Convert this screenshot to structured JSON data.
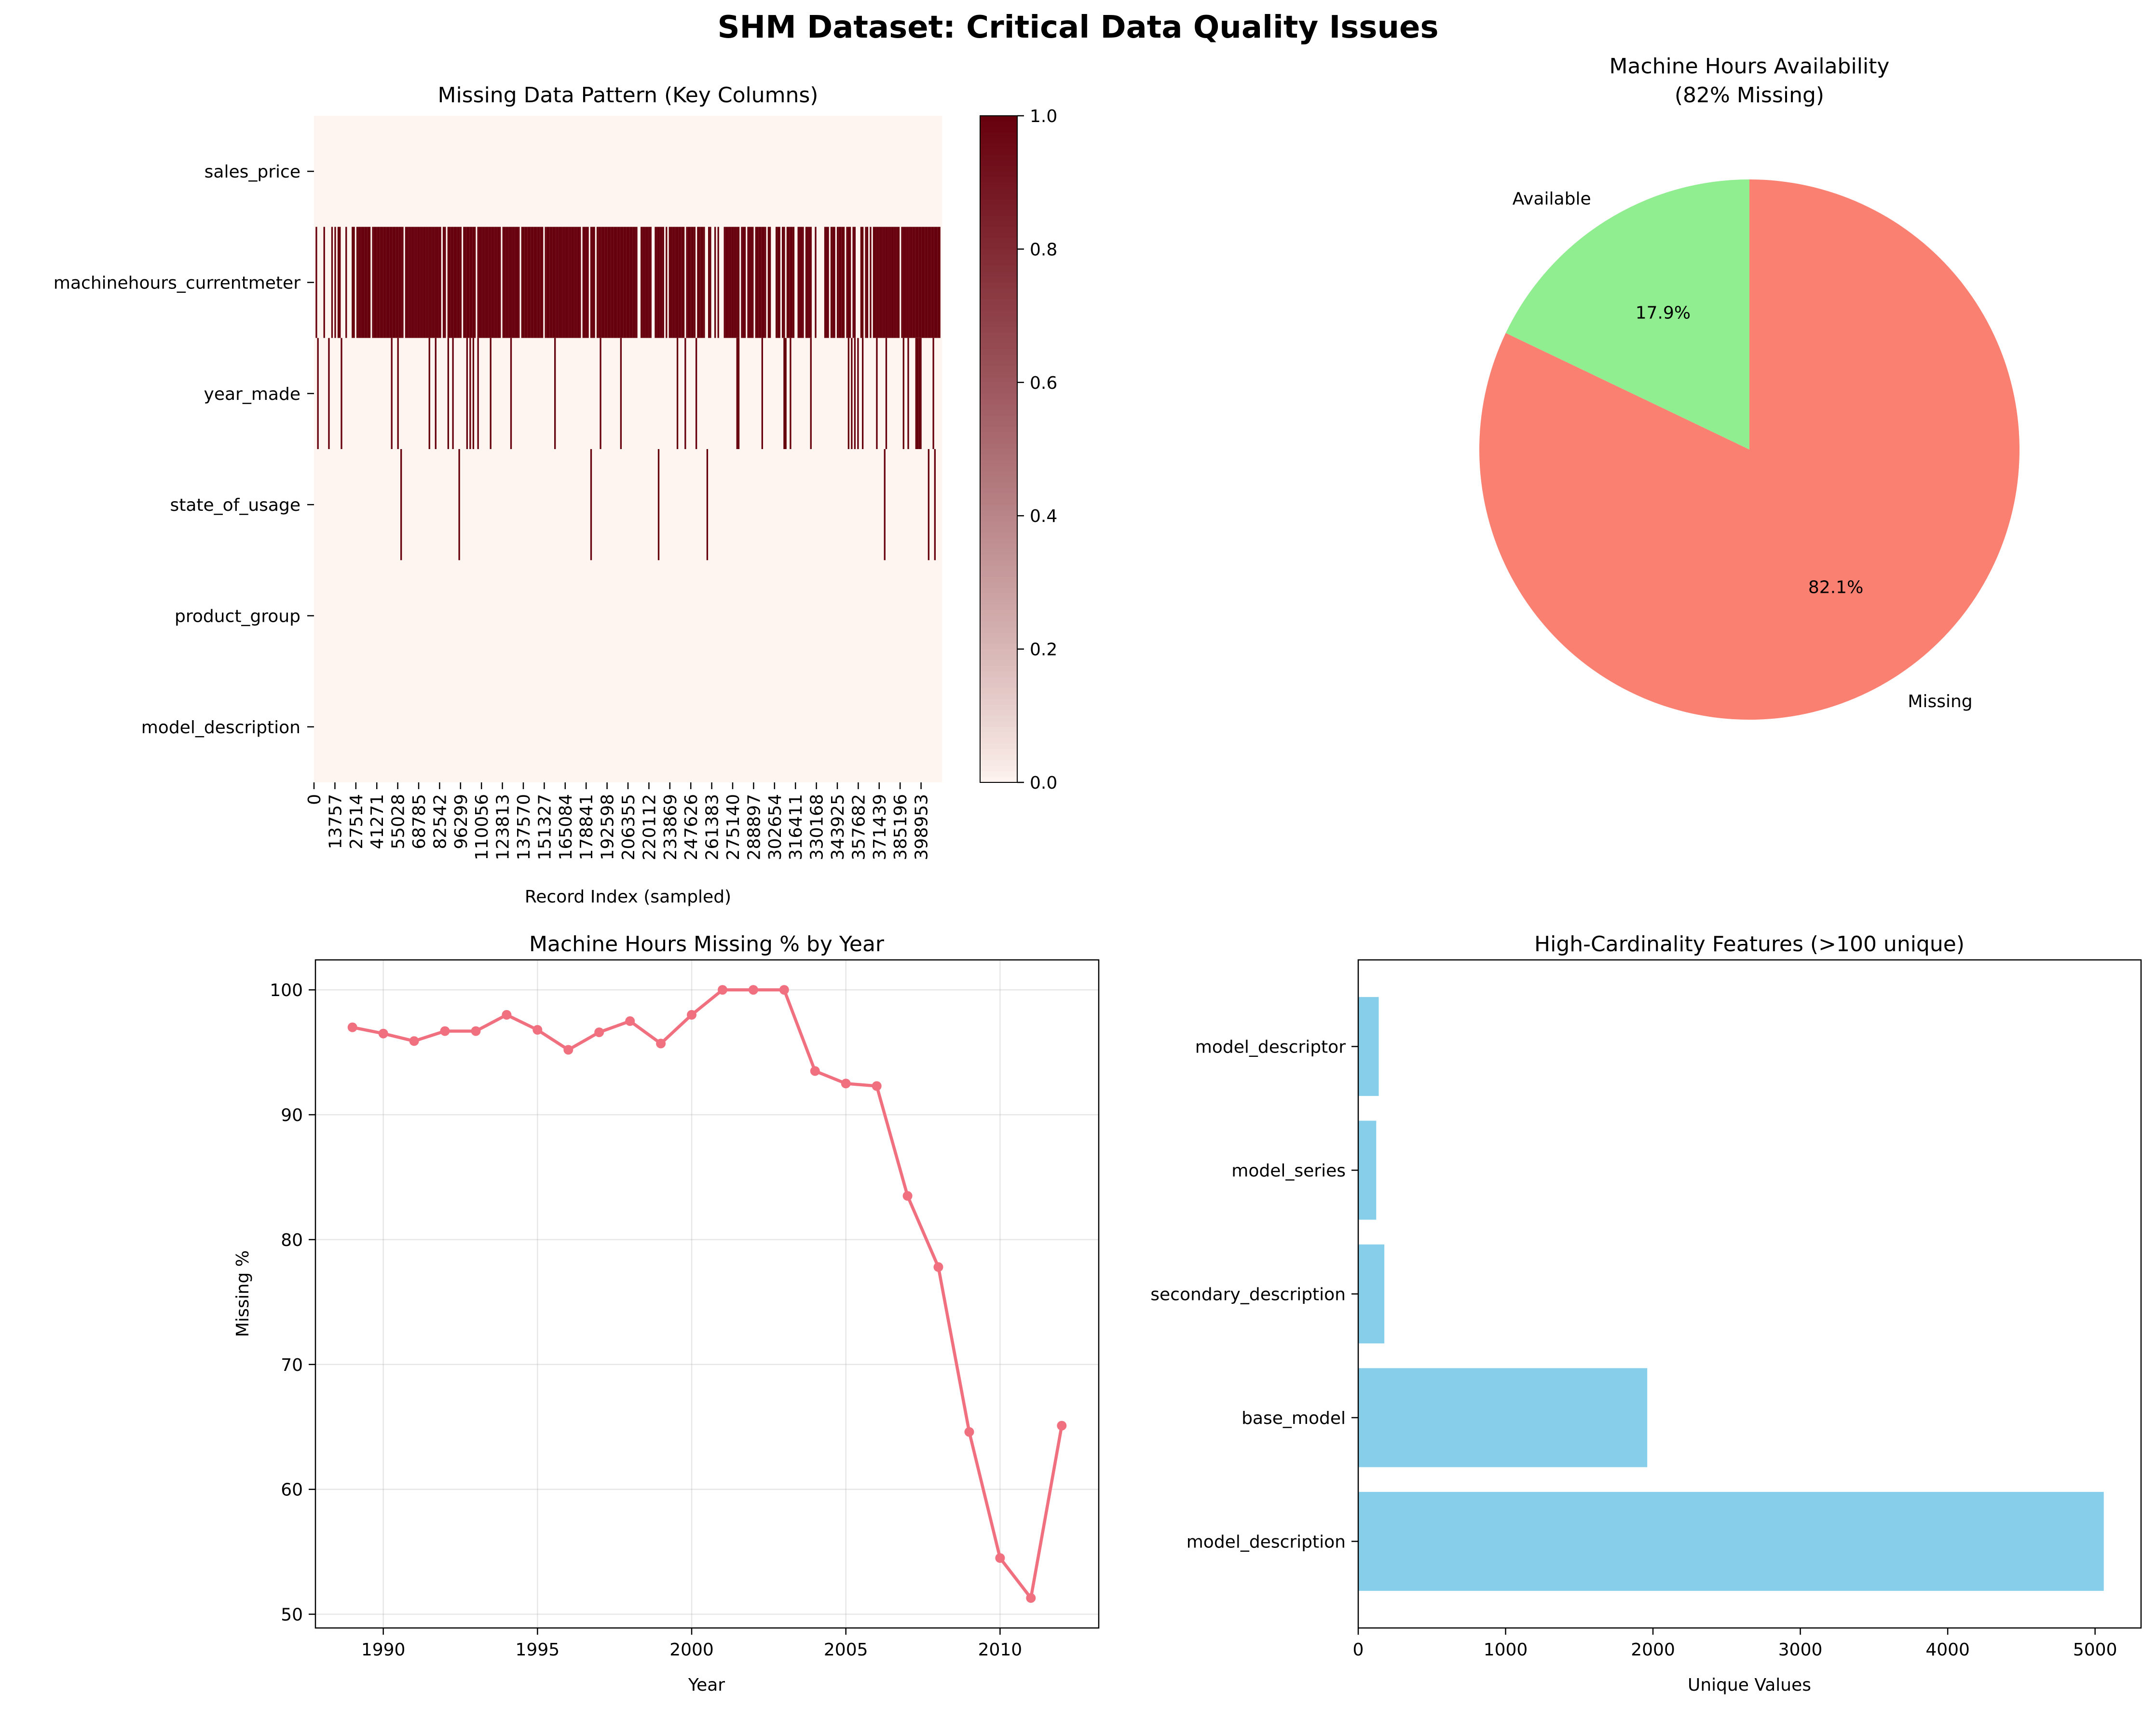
{
  "figure": {
    "suptitle": "SHM Dataset: Critical Data Quality Issues"
  },
  "chart_data": [
    {
      "type": "heatmap",
      "title": "Missing Data Pattern (Key Columns)",
      "xlabel": "Record Index (sampled)",
      "rows": [
        "sales_price",
        "machinehours_currentmeter",
        "year_made",
        "state_of_usage",
        "product_group",
        "model_description"
      ],
      "xtick_labels": [
        "0",
        "13757",
        "27514",
        "41271",
        "55028",
        "68785",
        "82542",
        "96299",
        "110056",
        "123813",
        "137570",
        "151327",
        "165084",
        "178841",
        "192598",
        "206355",
        "220112",
        "233869",
        "247626",
        "261383",
        "275140",
        "288897",
        "302654",
        "316411",
        "330168",
        "343925",
        "357682",
        "371439",
        "385196",
        "398953"
      ],
      "row_missing_fraction": [
        0.0,
        0.82,
        0.1,
        0.02,
        0.0,
        0.0
      ],
      "colorbar": {
        "cmap": "Reds",
        "min": 0.0,
        "max": 1.0,
        "ticks": [
          "0.0",
          "0.2",
          "0.4",
          "0.6",
          "0.8",
          "1.0"
        ]
      },
      "colors": {
        "low": "#fff5f0",
        "high": "#67000d"
      }
    },
    {
      "type": "pie",
      "title": "Machine Hours Availability\n(82% Missing)",
      "labels": [
        "Available",
        "Missing"
      ],
      "values": [
        17.9,
        82.1
      ],
      "autopct": [
        "17.9%",
        "82.1%"
      ],
      "colors": [
        "#90ee90",
        "#fa8072"
      ],
      "start": "top",
      "direction": "counterclockwise"
    },
    {
      "type": "line",
      "title": "Machine Hours Missing % by Year",
      "xlabel": "Year",
      "ylabel": "Missing %",
      "x": [
        1989,
        1990,
        1991,
        1992,
        1993,
        1994,
        1995,
        1996,
        1997,
        1998,
        1999,
        2000,
        2001,
        2002,
        2003,
        2004,
        2005,
        2006,
        2007,
        2008,
        2009,
        2010,
        2011,
        2012
      ],
      "y": [
        97.0,
        96.5,
        95.9,
        96.7,
        96.7,
        98.0,
        96.8,
        95.2,
        96.6,
        97.5,
        95.7,
        98.0,
        100.0,
        100.0,
        100.0,
        93.5,
        92.5,
        92.3,
        83.5,
        77.8,
        64.6,
        54.5,
        51.3,
        65.1
      ],
      "xlim": [
        1987.8,
        2013.2
      ],
      "ylim": [
        48.9,
        102.4
      ],
      "xticks": [
        1990,
        1995,
        2000,
        2005,
        2010
      ],
      "yticks": [
        50,
        60,
        70,
        80,
        90,
        100
      ],
      "grid": true,
      "color": "#f0707f"
    },
    {
      "type": "bar",
      "orientation": "horizontal",
      "title": "High-Cardinality Features (>100 unique)",
      "xlabel": "Unique Values",
      "categories": [
        "model_description",
        "base_model",
        "secondary_description",
        "model_series",
        "model_descriptor"
      ],
      "values": [
        5059,
        1961,
        177,
        122,
        139
      ],
      "xlim": [
        0,
        5312
      ],
      "xticks": [
        0,
        1000,
        2000,
        3000,
        4000,
        5000
      ],
      "color": "#87ceeb"
    }
  ]
}
